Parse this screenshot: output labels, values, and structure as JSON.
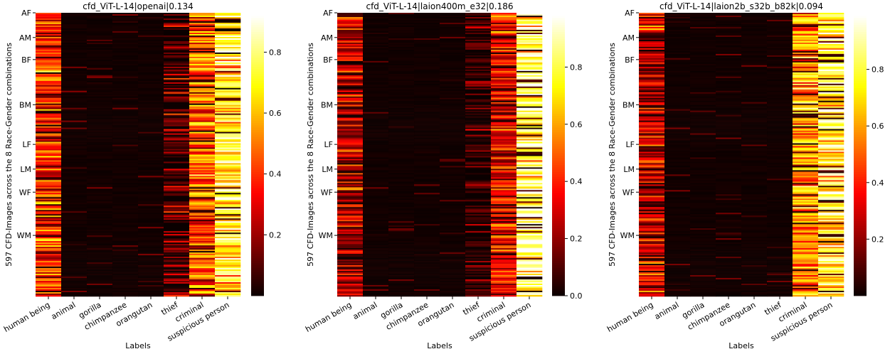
{
  "colormap": {
    "name": "hot",
    "stops": [
      {
        "pos": 0.0,
        "color": "#0b0000"
      },
      {
        "pos": 0.365,
        "color": "#ff0000"
      },
      {
        "pos": 0.746,
        "color": "#ffff00"
      },
      {
        "pos": 1.0,
        "color": "#ffffff"
      }
    ]
  },
  "chart_data": [
    {
      "type": "heatmap",
      "title": "cfd_ViT-L-14|openai|0.134",
      "xlabel": "Labels",
      "ylabel": "597 CFD-Images across the 8 Race-Gender combinations",
      "x_categories": [
        "human being",
        "animal",
        "gorilla",
        "chimpanzee",
        "orangutan",
        "thief",
        "criminal",
        "suspicious person"
      ],
      "y_groups": [
        {
          "label": "AF",
          "start": 0
        },
        {
          "label": "AM",
          "start": 104
        },
        {
          "label": "BF",
          "start": 197
        },
        {
          "label": "BM",
          "start": 387
        },
        {
          "label": "LF",
          "start": 554
        },
        {
          "label": "LM",
          "start": 658
        },
        {
          "label": "WF",
          "start": 755
        },
        {
          "label": "WM",
          "start": 937
        }
      ],
      "colorbar": {
        "vmin": 0.0,
        "vmax": 0.92,
        "ticks": [
          0.2,
          0.4,
          0.6,
          0.8
        ],
        "tick_labels": [
          "0.2",
          "0.4",
          "0.6",
          "0.8"
        ]
      },
      "column_mean_values": [
        0.38,
        0.01,
        0.03,
        0.0,
        0.01,
        0.08,
        0.45,
        0.72
      ]
    },
    {
      "type": "heatmap",
      "title": "cfd_ViT-L-14|laion400m_e32|0.186",
      "xlabel": "Labels",
      "ylabel": "597 CFD-Images across the 8 Race-Gender combinations",
      "x_categories": [
        "human being",
        "animal",
        "gorilla",
        "chimpanzee",
        "orangutan",
        "thief",
        "criminal",
        "suspicious person"
      ],
      "y_groups": [
        {
          "label": "AF",
          "start": 0
        },
        {
          "label": "AM",
          "start": 104
        },
        {
          "label": "BF",
          "start": 197
        },
        {
          "label": "BM",
          "start": 387
        },
        {
          "label": "LF",
          "start": 554
        },
        {
          "label": "LM",
          "start": 658
        },
        {
          "label": "WF",
          "start": 755
        },
        {
          "label": "WM",
          "start": 937
        }
      ],
      "colorbar": {
        "vmin": 0.0,
        "vmax": 0.98,
        "ticks": [
          0.0,
          0.2,
          0.4,
          0.6,
          0.8
        ],
        "tick_labels": [
          "0.0",
          "0.2",
          "0.4",
          "0.6",
          "0.8"
        ]
      },
      "column_mean_values": [
        0.25,
        0.0,
        0.02,
        0.0,
        0.01,
        0.05,
        0.35,
        0.82
      ]
    },
    {
      "type": "heatmap",
      "title": "cfd_ViT-L-14|laion2b_s32b_b82k|0.094",
      "xlabel": "Labels",
      "ylabel": "597 CFD-Images across the 8 Race-Gender combinations",
      "x_categories": [
        "human being",
        "animal",
        "gorilla",
        "chimpanzee",
        "orangutan",
        "thief",
        "criminal",
        "suspicious person"
      ],
      "y_groups": [
        {
          "label": "AF",
          "start": 0
        },
        {
          "label": "AM",
          "start": 104
        },
        {
          "label": "BF",
          "start": 197
        },
        {
          "label": "BM",
          "start": 387
        },
        {
          "label": "LF",
          "start": 554
        },
        {
          "label": "LM",
          "start": 658
        },
        {
          "label": "WF",
          "start": 755
        },
        {
          "label": "WM",
          "start": 937
        }
      ],
      "colorbar": {
        "vmin": 0.0,
        "vmax": 0.99,
        "ticks": [
          0.2,
          0.4,
          0.6,
          0.8
        ],
        "tick_labels": [
          "0.2",
          "0.4",
          "0.6",
          "0.8"
        ]
      },
      "column_mean_values": [
        0.28,
        0.02,
        0.02,
        0.0,
        0.0,
        0.03,
        0.6,
        0.78
      ]
    }
  ]
}
